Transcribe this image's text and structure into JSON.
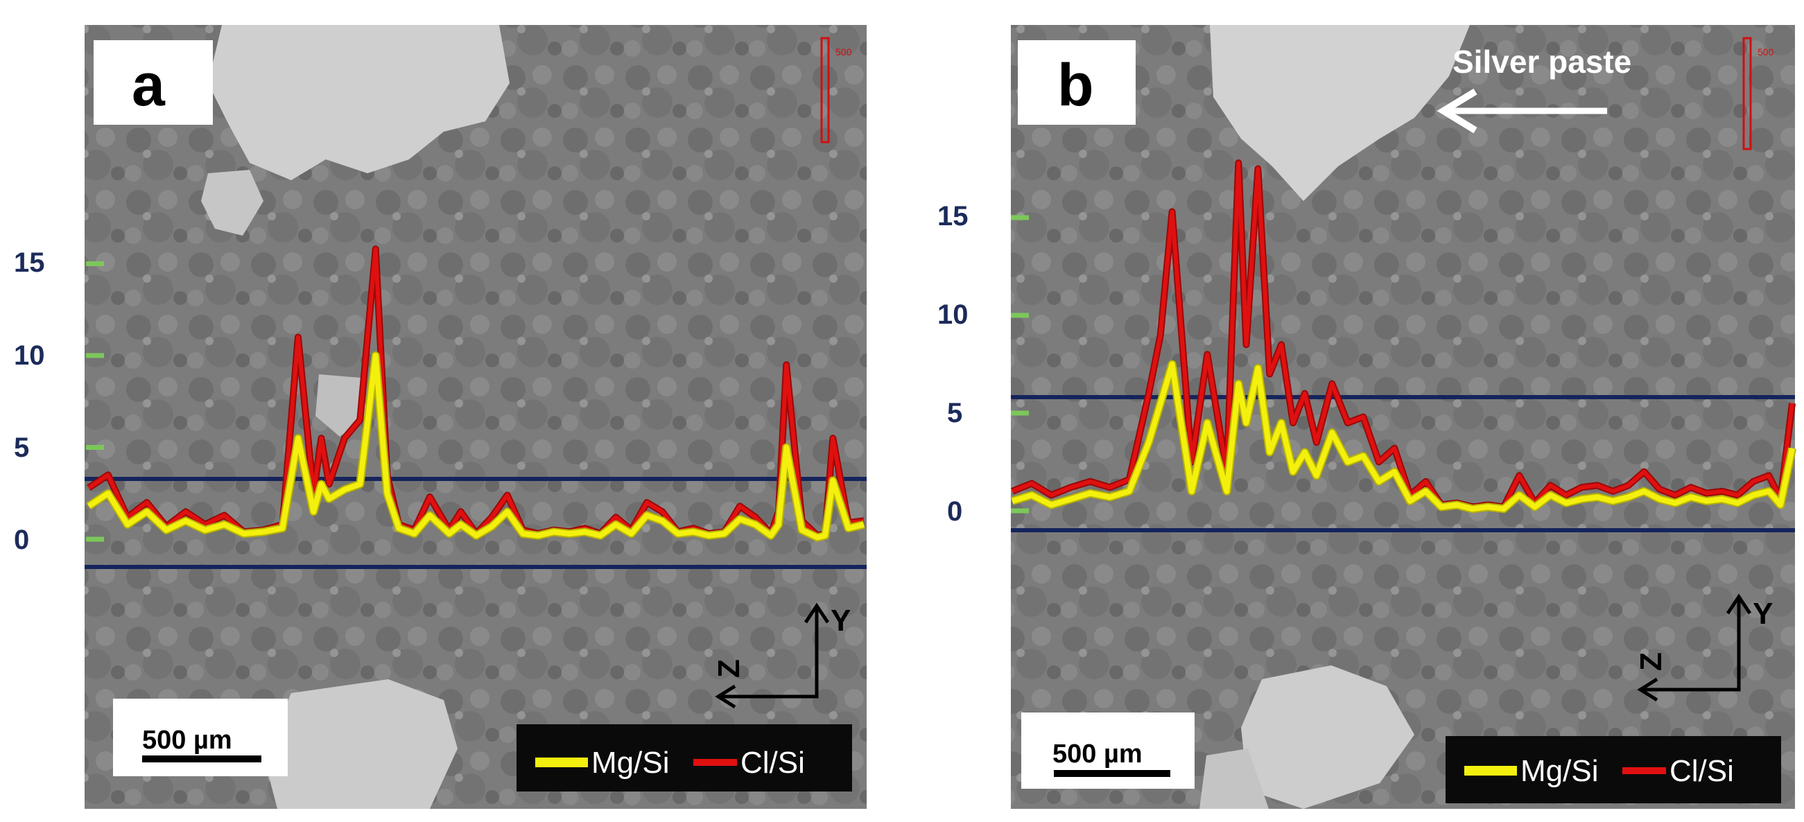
{
  "chart_data": [
    {
      "type": "line",
      "panel_label": "a",
      "y_ticks": [
        "15",
        "10",
        "5",
        "0"
      ],
      "ylim": [
        0,
        15
      ],
      "x": [
        0,
        0.025,
        0.05,
        0.075,
        0.1,
        0.125,
        0.15,
        0.175,
        0.2,
        0.225,
        0.25,
        0.27,
        0.29,
        0.3,
        0.31,
        0.33,
        0.35,
        0.37,
        0.385,
        0.4,
        0.42,
        0.44,
        0.465,
        0.48,
        0.5,
        0.52,
        0.54,
        0.56,
        0.58,
        0.6,
        0.62,
        0.64,
        0.66,
        0.68,
        0.7,
        0.72,
        0.74,
        0.76,
        0.78,
        0.8,
        0.82,
        0.84,
        0.86,
        0.88,
        0.89,
        0.9,
        0.92,
        0.94,
        0.95,
        0.96,
        0.98,
        1.0
      ],
      "series": [
        {
          "name": "Mg/Si",
          "color": "#f4f00e",
          "values": [
            1.8,
            2.5,
            0.8,
            1.5,
            0.5,
            1.0,
            0.5,
            0.8,
            0.3,
            0.4,
            0.6,
            5.5,
            1.5,
            3.0,
            2.2,
            2.7,
            3.0,
            10.0,
            2.5,
            0.6,
            0.3,
            1.3,
            0.3,
            0.8,
            0.2,
            0.7,
            1.5,
            0.3,
            0.2,
            0.4,
            0.3,
            0.4,
            0.2,
            0.8,
            0.3,
            1.3,
            1.0,
            0.3,
            0.4,
            0.2,
            0.3,
            1.1,
            0.8,
            0.2,
            0.8,
            5.0,
            0.5,
            0.1,
            0.2,
            3.2,
            0.6,
            0.8
          ]
        },
        {
          "name": "Cl/Si",
          "color": "#e01010",
          "values": [
            2.8,
            3.5,
            1.2,
            2.0,
            0.7,
            1.5,
            0.8,
            1.3,
            0.4,
            0.5,
            0.8,
            11.0,
            2.5,
            5.5,
            3.0,
            5.5,
            6.5,
            15.8,
            3.5,
            0.8,
            0.5,
            2.3,
            0.5,
            1.5,
            0.3,
            1.2,
            2.4,
            0.5,
            0.3,
            0.5,
            0.4,
            0.6,
            0.3,
            1.2,
            0.5,
            2.0,
            1.5,
            0.4,
            0.6,
            0.3,
            0.4,
            1.8,
            1.2,
            0.3,
            1.5,
            9.5,
            1.0,
            0.2,
            0.3,
            5.5,
            0.9,
            1.0
          ]
        }
      ],
      "reference_lines_y": [
        3.2,
        -1.8
      ],
      "scale_bar_label": "500 µm",
      "legend": [
        "Mg/Si",
        "Cl/Si"
      ],
      "axes_labels": {
        "vertical": "Y",
        "depth": "Z"
      }
    },
    {
      "type": "line",
      "panel_label": "b",
      "y_ticks": [
        "15",
        "10",
        "5",
        "0"
      ],
      "ylim": [
        0,
        15
      ],
      "annotation": "Silver paste",
      "x": [
        0,
        0.025,
        0.05,
        0.075,
        0.1,
        0.125,
        0.15,
        0.175,
        0.19,
        0.205,
        0.23,
        0.25,
        0.275,
        0.29,
        0.3,
        0.315,
        0.33,
        0.345,
        0.36,
        0.375,
        0.39,
        0.41,
        0.43,
        0.45,
        0.47,
        0.49,
        0.51,
        0.53,
        0.55,
        0.57,
        0.59,
        0.61,
        0.63,
        0.65,
        0.67,
        0.69,
        0.71,
        0.73,
        0.75,
        0.77,
        0.79,
        0.81,
        0.83,
        0.85,
        0.87,
        0.89,
        0.91,
        0.93,
        0.95,
        0.97,
        0.985,
        1.0
      ],
      "series": [
        {
          "name": "Mg/Si",
          "color": "#f4f00e",
          "values": [
            0.5,
            0.8,
            0.3,
            0.6,
            0.9,
            0.7,
            1.0,
            3.5,
            5.5,
            7.5,
            1.0,
            4.5,
            1.0,
            6.5,
            4.5,
            7.3,
            3.0,
            4.5,
            2.0,
            3.0,
            1.8,
            4.0,
            2.5,
            2.8,
            1.5,
            2.0,
            0.5,
            1.0,
            0.2,
            0.3,
            0.1,
            0.2,
            0.1,
            0.8,
            0.2,
            0.8,
            0.4,
            0.6,
            0.7,
            0.5,
            0.7,
            1.0,
            0.6,
            0.4,
            0.7,
            0.5,
            0.6,
            0.4,
            0.8,
            1.0,
            0.3,
            3.2
          ]
        },
        {
          "name": "Cl/Si",
          "color": "#e01010",
          "values": [
            1.0,
            1.4,
            0.8,
            1.2,
            1.5,
            1.2,
            1.6,
            6.0,
            9.0,
            15.3,
            2.5,
            8.0,
            2.0,
            17.8,
            8.5,
            17.5,
            7.0,
            8.5,
            4.5,
            6.0,
            3.5,
            6.5,
            4.5,
            4.8,
            2.5,
            3.2,
            0.8,
            1.5,
            0.3,
            0.4,
            0.2,
            0.3,
            0.2,
            1.8,
            0.4,
            1.3,
            0.8,
            1.2,
            1.3,
            1.0,
            1.3,
            2.0,
            1.1,
            0.8,
            1.2,
            0.9,
            1.0,
            0.8,
            1.5,
            1.8,
            0.6,
            5.5
          ]
        }
      ],
      "reference_lines_y": [
        5.8,
        -1.0
      ],
      "scale_bar_label": "500 µm",
      "legend": [
        "Mg/Si",
        "Cl/Si"
      ],
      "axes_labels": {
        "vertical": "Y",
        "depth": "Z"
      }
    }
  ]
}
